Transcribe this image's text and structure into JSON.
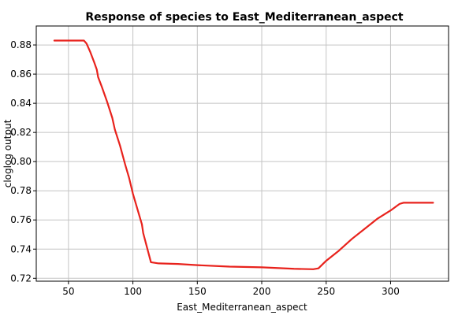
{
  "chart_data": {
    "type": "line",
    "title": "Response of species to East_Mediterranean_aspect",
    "xlabel": "East_Mediterranean_aspect",
    "ylabel": "cloglog output",
    "xlim": [
      25,
      345
    ],
    "ylim": [
      0.718,
      0.893
    ],
    "x_ticks": [
      50,
      100,
      150,
      200,
      250,
      300
    ],
    "y_ticks": [
      0.72,
      0.74,
      0.76,
      0.78,
      0.8,
      0.82,
      0.84,
      0.86,
      0.88
    ],
    "y_tick_labels": [
      "0.72",
      "0.74",
      "0.76",
      "0.78",
      "0.80",
      "0.82",
      "0.84",
      "0.86",
      "0.88"
    ],
    "grid": true,
    "series": [
      {
        "color": "#e8221c",
        "points": [
          [
            39,
            0.883
          ],
          [
            62,
            0.883
          ],
          [
            64,
            0.881
          ],
          [
            67,
            0.875
          ],
          [
            70,
            0.868
          ],
          [
            72,
            0.863
          ],
          [
            73,
            0.858
          ],
          [
            76,
            0.851
          ],
          [
            80,
            0.841
          ],
          [
            84,
            0.83
          ],
          [
            86,
            0.822
          ],
          [
            90,
            0.811
          ],
          [
            94,
            0.798
          ],
          [
            97,
            0.789
          ],
          [
            100,
            0.778
          ],
          [
            104,
            0.766
          ],
          [
            107,
            0.757
          ],
          [
            108,
            0.751
          ],
          [
            111,
            0.741
          ],
          [
            114,
            0.731
          ],
          [
            120,
            0.7302
          ],
          [
            135,
            0.7298
          ],
          [
            150,
            0.729
          ],
          [
            175,
            0.728
          ],
          [
            200,
            0.7275
          ],
          [
            225,
            0.7265
          ],
          [
            240,
            0.7262
          ],
          [
            244,
            0.7268
          ],
          [
            250,
            0.732
          ],
          [
            260,
            0.739
          ],
          [
            270,
            0.747
          ],
          [
            280,
            0.754
          ],
          [
            290,
            0.761
          ],
          [
            300,
            0.7665
          ],
          [
            307,
            0.771
          ],
          [
            310,
            0.7718
          ],
          [
            333,
            0.7718
          ]
        ]
      }
    ]
  }
}
